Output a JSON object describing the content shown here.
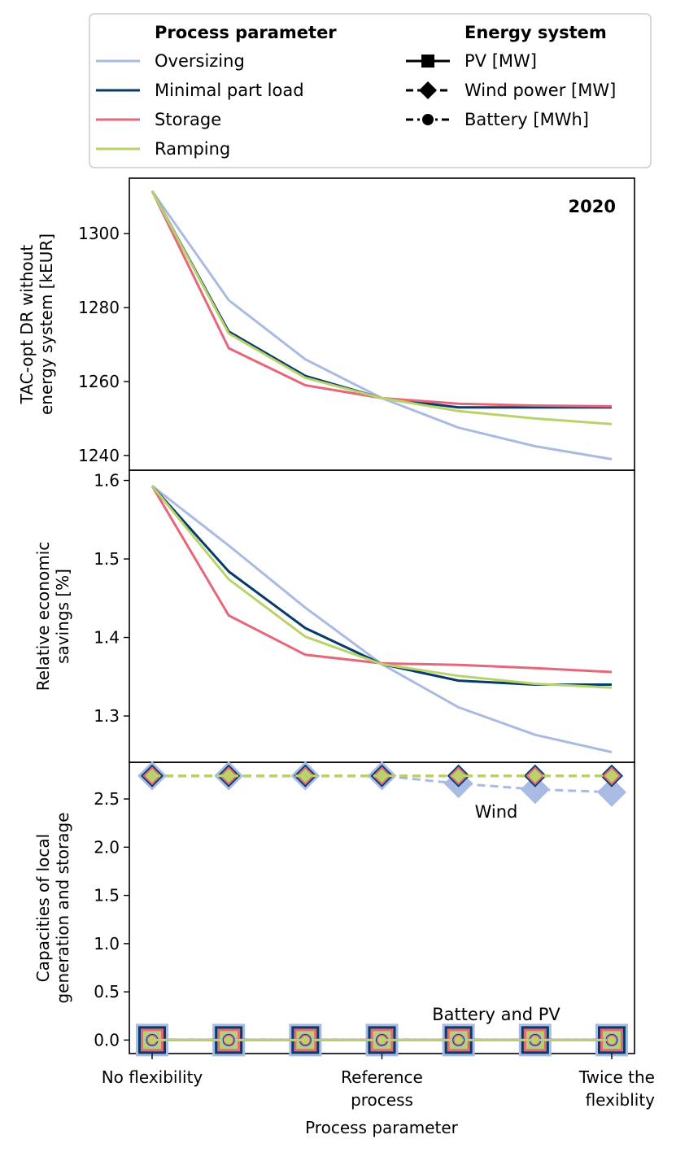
{
  "legend": {
    "process_title": "Process parameter",
    "energy_title": "Energy system",
    "process_items": [
      {
        "label": "Oversizing",
        "color": "#aabbe3"
      },
      {
        "label": "Minimal part load",
        "color": "#063c6a"
      },
      {
        "label": "Storage",
        "color": "#e6677a"
      },
      {
        "label": "Ramping",
        "color": "#b9d36a"
      }
    ],
    "energy_items": [
      {
        "label": "PV [MW]",
        "marker": "square",
        "dash": "solid"
      },
      {
        "label": "Wind power [MW]",
        "marker": "diamond",
        "dash": "dashed"
      },
      {
        "label": "Battery [MWh]",
        "marker": "circle",
        "dash": "dashdot"
      }
    ]
  },
  "xaxis": {
    "title": "Process parameter",
    "tick_labels": [
      {
        "index": 0,
        "lines": [
          "No flexibility"
        ]
      },
      {
        "index": 3,
        "lines": [
          "Reference",
          "process"
        ]
      },
      {
        "index": 6,
        "lines": [
          "Twice the",
          "flexiblity"
        ]
      }
    ]
  },
  "chart_data": [
    {
      "type": "line",
      "panel": "top",
      "annotation": "2020",
      "ylabel_lines": [
        "TAC-opt DR without",
        "energy system [kEUR]"
      ],
      "ylim": [
        1236,
        1315
      ],
      "yticks": [
        1240,
        1260,
        1280,
        1300
      ],
      "x": [
        0,
        1,
        2,
        3,
        4,
        5,
        6
      ],
      "series": [
        {
          "name": "Oversizing",
          "values": [
            1311.5,
            1282,
            1266,
            1255.5,
            1247.5,
            1242.5,
            1239
          ]
        },
        {
          "name": "Minimal part load",
          "values": [
            1311.5,
            1273.5,
            1261.5,
            1255.5,
            1253,
            1253,
            1253
          ]
        },
        {
          "name": "Storage",
          "values": [
            1311.5,
            1269,
            1259,
            1255.5,
            1254,
            1253.5,
            1253.3
          ]
        },
        {
          "name": "Ramping",
          "values": [
            1311.5,
            1273,
            1261,
            1255.5,
            1252,
            1250,
            1248.5
          ]
        }
      ]
    },
    {
      "type": "line",
      "panel": "middle",
      "ylabel_lines": [
        "Relative economic",
        "savings [%]"
      ],
      "ylim": [
        1.241,
        1.613
      ],
      "yticks": [
        1.3,
        1.4,
        1.5,
        1.6
      ],
      "yticks_label": [
        "1.3",
        "1.4",
        "1.5",
        "1.6"
      ],
      "x": [
        0,
        1,
        2,
        3,
        4,
        5,
        6
      ],
      "series": [
        {
          "name": "Oversizing",
          "values": [
            1.593,
            1.517,
            1.438,
            1.366,
            1.311,
            1.276,
            1.254
          ]
        },
        {
          "name": "Minimal part load",
          "values": [
            1.593,
            1.484,
            1.412,
            1.366,
            1.345,
            1.34,
            1.34
          ]
        },
        {
          "name": "Storage",
          "values": [
            1.593,
            1.428,
            1.378,
            1.367,
            1.365,
            1.361,
            1.356
          ]
        },
        {
          "name": "Ramping",
          "values": [
            1.593,
            1.474,
            1.401,
            1.366,
            1.351,
            1.341,
            1.336
          ]
        }
      ]
    },
    {
      "type": "line",
      "panel": "bottom",
      "ylabel_lines": [
        "Capacities of local",
        "generation and storage"
      ],
      "ylim": [
        -0.14,
        2.88
      ],
      "yticks": [
        0,
        0.5,
        1,
        1.5,
        2,
        2.5
      ],
      "yticks_label": [
        "0.0",
        "0.5",
        "1.0",
        "1.5",
        "2.0",
        "2.5"
      ],
      "annotations": [
        "Wind",
        "Battery and PV"
      ],
      "x": [
        0,
        1,
        2,
        3,
        4,
        5,
        6
      ],
      "series": [
        {
          "name": "Oversizing",
          "wind": [
            2.74,
            2.74,
            2.74,
            2.74,
            2.66,
            2.6,
            2.57
          ],
          "pv": [
            0,
            0,
            0,
            0,
            0,
            0,
            0
          ],
          "battery": [
            0,
            0,
            0,
            0,
            0,
            0,
            0
          ]
        },
        {
          "name": "Minimal part load",
          "wind": [
            2.74,
            2.74,
            2.74,
            2.74,
            2.74,
            2.74,
            2.74
          ],
          "pv": [
            0,
            0,
            0,
            0,
            0,
            0,
            0
          ],
          "battery": [
            0,
            0,
            0,
            0,
            0,
            0,
            0
          ]
        },
        {
          "name": "Storage",
          "wind": [
            2.74,
            2.74,
            2.74,
            2.74,
            2.74,
            2.74,
            2.74
          ],
          "pv": [
            0,
            0,
            0,
            0,
            0,
            0,
            0
          ],
          "battery": [
            0,
            0,
            0,
            0,
            0,
            0,
            0
          ]
        },
        {
          "name": "Ramping",
          "wind": [
            2.74,
            2.74,
            2.74,
            2.74,
            2.74,
            2.74,
            2.74
          ],
          "pv": [
            0,
            0,
            0,
            0,
            0,
            0,
            0
          ],
          "battery": [
            0,
            0,
            0,
            0,
            0,
            0,
            0
          ]
        }
      ]
    }
  ]
}
